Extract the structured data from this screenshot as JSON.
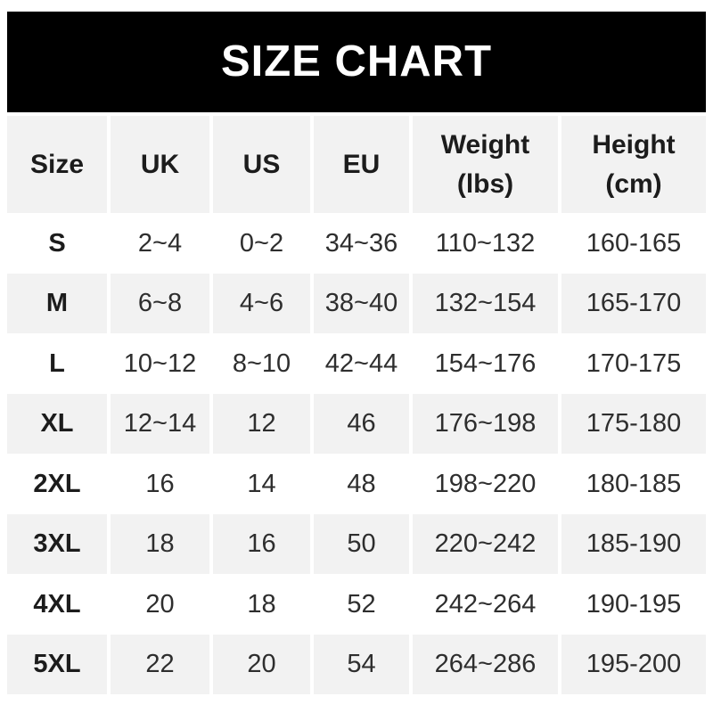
{
  "banner": {
    "title": "SIZE CHART",
    "bg_color": "#000000",
    "text_color": "#ffffff"
  },
  "table": {
    "columns": [
      "Size",
      "UK",
      "US",
      "EU",
      "Weight (lbs)",
      "Height (cm)"
    ],
    "header_bg": "#f2f2f2",
    "alt_row_bg": "#f2f2f2",
    "row_bg": "#ffffff",
    "rows": [
      {
        "size": "S",
        "uk": "2~4",
        "us": "0~2",
        "eu": "34~36",
        "weight_lbs": "110~132",
        "height_cm": "160-165"
      },
      {
        "size": "M",
        "uk": "6~8",
        "us": "4~6",
        "eu": "38~40",
        "weight_lbs": "132~154",
        "height_cm": "165-170"
      },
      {
        "size": "L",
        "uk": "10~12",
        "us": "8~10",
        "eu": "42~44",
        "weight_lbs": "154~176",
        "height_cm": "170-175"
      },
      {
        "size": "XL",
        "uk": "12~14",
        "us": "12",
        "eu": "46",
        "weight_lbs": "176~198",
        "height_cm": "175-180"
      },
      {
        "size": "2XL",
        "uk": "16",
        "us": "14",
        "eu": "48",
        "weight_lbs": "198~220",
        "height_cm": "180-185"
      },
      {
        "size": "3XL",
        "uk": "18",
        "us": "16",
        "eu": "50",
        "weight_lbs": "220~242",
        "height_cm": "185-190"
      },
      {
        "size": "4XL",
        "uk": "20",
        "us": "18",
        "eu": "52",
        "weight_lbs": "242~264",
        "height_cm": "190-195"
      },
      {
        "size": "5XL",
        "uk": "22",
        "us": "20",
        "eu": "54",
        "weight_lbs": "264~286",
        "height_cm": "195-200"
      }
    ]
  }
}
